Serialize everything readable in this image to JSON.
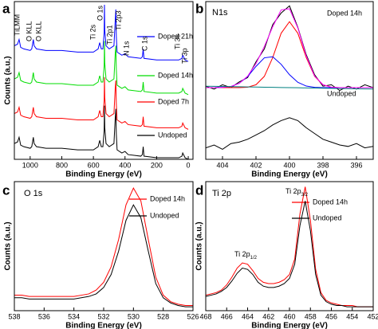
{
  "chart_data": [
    {
      "type": "line",
      "panel_label": "a",
      "xlabel": "Binding Energy (eV)",
      "ylabel": "Counts (a.u.)",
      "x": [
        1100,
        1080,
        1070,
        1060,
        1040,
        1000,
        990,
        980,
        975,
        960,
        900,
        800,
        700,
        600,
        570,
        560,
        550,
        540,
        532,
        530,
        528,
        520,
        500,
        470,
        462,
        458,
        455,
        450,
        420,
        400,
        380,
        300,
        290,
        285,
        280,
        200,
        100,
        60,
        40,
        35,
        20,
        0
      ],
      "series": [
        {
          "name": "Doped 21h",
          "color": "#0000ff",
          "values": [
            72,
            73,
            76,
            71,
            70,
            69,
            70,
            76,
            72,
            70,
            69,
            69,
            68,
            68,
            70,
            74,
            70,
            70,
            80,
            98,
            82,
            72,
            70,
            72,
            88,
            95,
            78,
            68,
            66,
            67,
            65,
            64,
            65,
            70,
            64,
            63,
            63,
            63,
            64,
            66,
            63,
            62
          ]
        },
        {
          "name": "Doped 14h",
          "color": "#00dd00",
          "values": [
            51,
            52,
            55,
            50,
            49,
            48,
            49,
            55,
            51,
            49,
            48,
            48,
            47,
            47,
            49,
            53,
            49,
            49,
            59,
            75,
            61,
            51,
            49,
            51,
            67,
            72,
            57,
            47,
            45,
            46,
            44,
            43,
            44,
            49,
            43,
            42,
            42,
            42,
            43,
            45,
            42,
            41
          ]
        },
        {
          "name": "Doped 7h",
          "color": "#ff0000",
          "values": [
            29,
            30,
            33,
            28,
            27,
            26,
            27,
            33,
            29,
            27,
            26,
            26,
            25,
            25,
            27,
            31,
            27,
            27,
            37,
            52,
            39,
            29,
            27,
            29,
            45,
            50,
            35,
            25,
            23,
            24,
            22,
            21,
            22,
            27,
            21,
            20,
            20,
            20,
            21,
            23,
            20,
            19
          ]
        },
        {
          "name": "Undoped",
          "color": "#000000",
          "values": [
            10,
            11,
            14,
            9,
            8,
            7,
            8,
            14,
            10,
            8,
            7,
            7,
            6,
            6,
            8,
            12,
            8,
            8,
            18,
            34,
            20,
            10,
            8,
            10,
            26,
            32,
            16,
            6,
            4,
            5,
            3,
            2,
            3,
            8,
            2,
            1,
            1,
            1,
            2,
            4,
            1,
            0
          ]
        }
      ],
      "annotations": [
        "TiLMM",
        "O KLL",
        "O KLL",
        "Ti 2s",
        "O 1s",
        "Ti 2p1",
        "Ti 2p3",
        "N 1s",
        "C 1s",
        "Ti 3s",
        "Ti 3p"
      ],
      "xlim": [
        1100,
        -30
      ],
      "ylim": [
        0,
        100
      ],
      "xticks": [
        1000,
        800,
        600,
        400,
        200,
        0
      ]
    },
    {
      "type": "line",
      "panel_label": "b",
      "title": "N1s",
      "xlabel": "Binding Energy (eV)",
      "x": [
        405,
        404.5,
        404,
        403.5,
        403,
        402.5,
        402,
        401.5,
        401,
        400.5,
        400,
        399.5,
        399,
        398.5,
        398,
        397.5,
        397,
        396.5,
        396,
        395.5,
        395
      ],
      "series": [
        {
          "name": "Doped 14h",
          "color": "#000000",
          "values": [
            51,
            49,
            52,
            50,
            54,
            57,
            68,
            77,
            94,
            102,
            107,
            92,
            73,
            59,
            51,
            52,
            48,
            51,
            49,
            52,
            50
          ]
        },
        {
          "color": "#ff0000",
          "values": [
            50,
            50,
            50,
            50,
            50,
            50.3,
            52,
            57.9,
            71,
            87.9,
            96,
            87.9,
            71,
            57.9,
            52,
            50.3,
            50,
            50,
            50,
            50,
            50
          ]
        },
        {
          "color": "#0000ff",
          "values": [
            50,
            50,
            50.2,
            50.8,
            53,
            57.7,
            64.8,
            70.8,
            71.5,
            66.3,
            59,
            53.7,
            51.1,
            50.2,
            50,
            50,
            50,
            50,
            50,
            50,
            50
          ]
        },
        {
          "color": "#ff00ff",
          "values": [
            50,
            50,
            50.2,
            50.8,
            53,
            58,
            66.8,
            78.7,
            92.5,
            104.2,
            105,
            91.6,
            72.1,
            58.1,
            52,
            50.3,
            50,
            50,
            50,
            50,
            50
          ]
        },
        {
          "color": "#008080",
          "values": [
            51,
            50.9,
            50.8,
            50.7,
            50.6,
            50.5,
            50.4,
            50.3,
            50.2,
            50.1,
            50,
            49.9,
            49.8,
            49.7,
            49.6,
            49.5,
            49.4,
            49.3,
            49.2,
            49.1,
            49
          ]
        },
        {
          "name": "Undoped",
          "color": "#000000",
          "values": [
            8,
            10,
            7,
            11,
            12,
            14,
            17,
            20,
            24,
            27,
            29,
            27,
            22,
            18,
            14,
            12,
            10,
            9,
            11,
            8,
            9
          ]
        }
      ],
      "xlim": [
        405,
        395
      ],
      "ylim": [
        0,
        110
      ],
      "xticks": [
        404,
        402,
        400,
        398,
        396
      ]
    },
    {
      "type": "line",
      "panel_label": "c",
      "title": "O 1s",
      "xlabel": "Binding Energy (eV)",
      "ylabel": "Counts (a.u.)",
      "x": [
        538,
        537.5,
        537,
        536.5,
        536,
        535.5,
        535,
        534.5,
        534,
        533.5,
        533,
        532.5,
        532,
        531.5,
        531,
        530.5,
        530,
        529.5,
        529,
        528.5,
        528,
        527.5,
        527,
        526.5,
        526
      ],
      "series": [
        {
          "name": "Doped 14h",
          "color": "#ff0000",
          "values": [
            12,
            12,
            11,
            11,
            11,
            11,
            11,
            11,
            11,
            12,
            13,
            16,
            22,
            34,
            55,
            82,
            95,
            85,
            55,
            26,
            12,
            7,
            5,
            4,
            4
          ]
        },
        {
          "name": "Undoped",
          "color": "#000000",
          "values": [
            10,
            10,
            9,
            9,
            9,
            9,
            9,
            9,
            9,
            10,
            11,
            13,
            18,
            28,
            46,
            70,
            82,
            72,
            46,
            21,
            10,
            6,
            4,
            3,
            3
          ]
        }
      ],
      "xlim": [
        538,
        526
      ],
      "ylim": [
        0,
        100
      ],
      "xticks": [
        538,
        536,
        534,
        532,
        530,
        528,
        526
      ]
    },
    {
      "type": "line",
      "panel_label": "d",
      "title": "Ti 2p",
      "xlabel": "Binding Energy (eV)",
      "ylabel": "Counts (a.u.)",
      "x": [
        468,
        467.5,
        467,
        466.5,
        466,
        465.5,
        465,
        464.5,
        464,
        463.5,
        463,
        462.5,
        462,
        461.5,
        461,
        460.5,
        460,
        459.5,
        459,
        458.5,
        458,
        457.5,
        457,
        456.5,
        456,
        455.5,
        455,
        454.5,
        454,
        453.5,
        453,
        452.5,
        452
      ],
      "series": [
        {
          "name": "Doped 14h",
          "color": "#ff0000",
          "values": [
            12,
            13,
            14,
            16,
            20,
            26,
            33,
            37,
            36,
            31,
            25,
            22,
            21,
            21,
            22,
            24,
            28,
            40,
            75,
            96,
            70,
            32,
            14,
            8,
            6,
            5,
            4,
            4,
            4,
            3,
            3,
            3,
            3
          ]
        },
        {
          "name": "Undoped",
          "color": "#000000",
          "values": [
            11,
            12,
            13,
            15,
            18,
            23,
            29,
            33,
            32,
            28,
            22,
            19,
            18,
            18,
            19,
            21,
            25,
            36,
            66,
            85,
            62,
            28,
            12,
            7,
            5,
            4,
            4,
            3,
            3,
            3,
            3,
            3,
            3
          ]
        }
      ],
      "annotations": [
        {
          "text": "Ti 2p",
          "sub": "1/2"
        },
        {
          "text": "Ti 2p",
          "sub": "3/2"
        }
      ],
      "xlim": [
        468,
        452
      ],
      "ylim": [
        0,
        100
      ],
      "xticks": [
        468,
        466,
        464,
        462,
        460,
        458,
        456,
        454,
        452
      ]
    }
  ]
}
